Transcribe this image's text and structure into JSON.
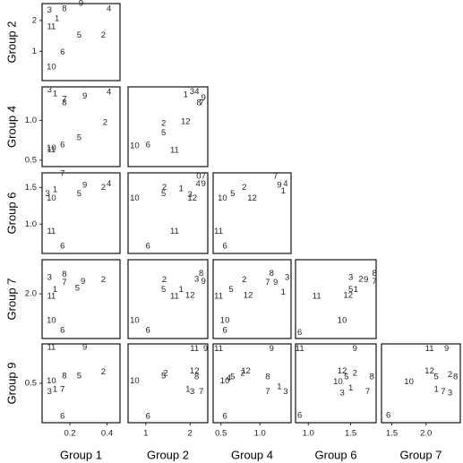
{
  "chart_data": {
    "type": "scatter",
    "layout": "lower-triangular pairs plot of group scores; each point drawn as its case-number label",
    "columns": [
      {
        "key": "g1",
        "label": "Group 1",
        "xlim": [
          0.05,
          0.47
        ],
        "ticks": [
          "0.2",
          "0.4"
        ],
        "tick_values": [
          0.2,
          0.4
        ]
      },
      {
        "key": "g2",
        "label": "Group 2",
        "xlim": [
          0.6,
          2.4
        ],
        "ticks": [
          "1",
          "2"
        ],
        "tick_values": [
          1,
          2
        ]
      },
      {
        "key": "g4",
        "label": "Group 4",
        "xlim": [
          0.4,
          1.4
        ],
        "ticks": [
          "0.5",
          "1.0"
        ],
        "tick_values": [
          0.5,
          1.0
        ]
      },
      {
        "key": "g6",
        "label": "Group 6",
        "xlim": [
          0.85,
          1.8
        ],
        "ticks": [
          "1.0",
          "1.5"
        ],
        "tick_values": [
          1.0,
          1.5
        ]
      },
      {
        "key": "g7",
        "label": "Group 7",
        "xlim": [
          1.35,
          2.5
        ],
        "ticks": [
          "1.5",
          "2.0"
        ],
        "tick_values": [
          1.5,
          2.0
        ]
      }
    ],
    "rows": [
      {
        "key": "g2",
        "label": "Group 2",
        "ylim": [
          0.05,
          2.55
        ],
        "ticks": [
          "1",
          "2"
        ],
        "tick_values": [
          1,
          2
        ]
      },
      {
        "key": "g4",
        "label": "Group 4",
        "ylim": [
          0.42,
          1.42
        ],
        "ticks": [
          "0.5",
          "1.0"
        ],
        "tick_values": [
          0.5,
          1.0
        ]
      },
      {
        "key": "g6",
        "label": "Group 6",
        "ylim": [
          0.6,
          1.7
        ],
        "ticks": [
          "1.0",
          "1.5"
        ],
        "tick_values": [
          1.0,
          1.5
        ]
      },
      {
        "key": "g7",
        "label": "Group 7",
        "ylim": [
          1.45,
          2.42
        ],
        "ticks": [
          "2.0"
        ],
        "tick_values": [
          2.0
        ]
      },
      {
        "key": "g9",
        "label": "Group 9",
        "ylim": [
          0.18,
          0.82
        ],
        "ticks": [
          "0.5"
        ],
        "tick_values": [
          0.5
        ]
      }
    ],
    "panels": [
      {
        "row": 0,
        "col": 0,
        "points": [
          {
            "label": "3",
            "x": 0.09,
            "y": 2.33
          },
          {
            "label": "8",
            "x": 0.17,
            "y": 2.38
          },
          {
            "label": "9",
            "x": 0.26,
            "y": 2.55
          },
          {
            "label": "4",
            "x": 0.41,
            "y": 2.38
          },
          {
            "label": "1",
            "x": 0.13,
            "y": 2.05
          },
          {
            "label": "11",
            "x": 0.1,
            "y": 1.8
          },
          {
            "label": "5",
            "x": 0.25,
            "y": 1.52
          },
          {
            "label": "2",
            "x": 0.38,
            "y": 1.52
          },
          {
            "label": "6",
            "x": 0.16,
            "y": 0.96
          },
          {
            "label": "10",
            "x": 0.1,
            "y": 0.48
          }
        ]
      },
      {
        "row": 1,
        "col": 0,
        "points": [
          {
            "label": "3",
            "x": 0.09,
            "y": 1.38
          },
          {
            "label": "1",
            "x": 0.12,
            "y": 1.33
          },
          {
            "label": "9",
            "x": 0.28,
            "y": 1.3
          },
          {
            "label": "4",
            "x": 0.41,
            "y": 1.35
          },
          {
            "label": "7",
            "x": 0.17,
            "y": 1.26
          },
          {
            "label": "8",
            "x": 0.17,
            "y": 1.22
          },
          {
            "label": "2",
            "x": 0.39,
            "y": 0.97
          },
          {
            "label": "5",
            "x": 0.25,
            "y": 0.78
          },
          {
            "label": "6",
            "x": 0.16,
            "y": 0.69
          },
          {
            "label": "10",
            "x": 0.1,
            "y": 0.65
          },
          {
            "label": "11",
            "x": 0.1,
            "y": 0.63
          }
        ]
      },
      {
        "row": 1,
        "col": 1,
        "points": [
          {
            "label": "1",
            "x": 1.9,
            "y": 1.32
          },
          {
            "label": "34",
            "x": 2.1,
            "y": 1.36
          },
          {
            "label": "9",
            "x": 2.3,
            "y": 1.28
          },
          {
            "label": "8",
            "x": 2.2,
            "y": 1.22
          },
          {
            "label": "7",
            "x": 2.26,
            "y": 1.22
          },
          {
            "label": "12",
            "x": 1.9,
            "y": 0.98
          },
          {
            "label": "2",
            "x": 1.4,
            "y": 0.96
          },
          {
            "label": "5",
            "x": 1.4,
            "y": 0.84
          },
          {
            "label": "10",
            "x": 0.75,
            "y": 0.68
          },
          {
            "label": "6",
            "x": 1.05,
            "y": 0.69
          },
          {
            "label": "11",
            "x": 1.65,
            "y": 0.62
          }
        ]
      },
      {
        "row": 2,
        "col": 0,
        "points": [
          {
            "label": "7",
            "x": 0.16,
            "y": 1.69
          },
          {
            "label": "9",
            "x": 0.28,
            "y": 1.53
          },
          {
            "label": "4",
            "x": 0.41,
            "y": 1.55
          },
          {
            "label": "2",
            "x": 0.38,
            "y": 1.5
          },
          {
            "label": "1",
            "x": 0.12,
            "y": 1.47
          },
          {
            "label": "3",
            "x": 0.08,
            "y": 1.41
          },
          {
            "label": "5",
            "x": 0.25,
            "y": 1.41
          },
          {
            "label": "10",
            "x": 0.1,
            "y": 1.35
          },
          {
            "label": "11",
            "x": 0.1,
            "y": 0.9
          },
          {
            "label": "6",
            "x": 0.16,
            "y": 0.7
          }
        ]
      },
      {
        "row": 2,
        "col": 1,
        "points": [
          {
            "label": "07",
            "x": 2.25,
            "y": 1.65
          },
          {
            "label": "4",
            "x": 2.18,
            "y": 1.55
          },
          {
            "label": "9",
            "x": 2.3,
            "y": 1.55
          },
          {
            "label": "2",
            "x": 1.42,
            "y": 1.5
          },
          {
            "label": "1",
            "x": 1.8,
            "y": 1.48
          },
          {
            "label": "5",
            "x": 1.4,
            "y": 1.41
          },
          {
            "label": "3",
            "x": 2.0,
            "y": 1.4
          },
          {
            "label": "12",
            "x": 2.05,
            "y": 1.35
          },
          {
            "label": "10",
            "x": 0.75,
            "y": 1.35
          },
          {
            "label": "11",
            "x": 1.65,
            "y": 0.9
          },
          {
            "label": "6",
            "x": 1.05,
            "y": 0.7
          }
        ]
      },
      {
        "row": 2,
        "col": 2,
        "points": [
          {
            "label": "7",
            "x": 1.2,
            "y": 1.65
          },
          {
            "label": "4",
            "x": 1.33,
            "y": 1.55
          },
          {
            "label": "9",
            "x": 1.25,
            "y": 1.53
          },
          {
            "label": "2",
            "x": 0.8,
            "y": 1.5
          },
          {
            "label": "1",
            "x": 1.3,
            "y": 1.45
          },
          {
            "label": "5",
            "x": 0.65,
            "y": 1.41
          },
          {
            "label": "12",
            "x": 0.9,
            "y": 1.35
          },
          {
            "label": "10",
            "x": 0.52,
            "y": 1.35
          },
          {
            "label": "11",
            "x": 0.47,
            "y": 0.9
          },
          {
            "label": "6",
            "x": 0.55,
            "y": 0.7
          }
        ]
      },
      {
        "row": 3,
        "col": 0,
        "points": [
          {
            "label": "3",
            "x": 0.09,
            "y": 2.2
          },
          {
            "label": "8",
            "x": 0.17,
            "y": 2.24
          },
          {
            "label": "7",
            "x": 0.17,
            "y": 2.14
          },
          {
            "label": "9",
            "x": 0.27,
            "y": 2.15
          },
          {
            "label": "2",
            "x": 0.38,
            "y": 2.17
          },
          {
            "label": "5",
            "x": 0.24,
            "y": 2.07
          },
          {
            "label": "1",
            "x": 0.12,
            "y": 2.05
          },
          {
            "label": "11",
            "x": 0.1,
            "y": 1.97
          },
          {
            "label": "10",
            "x": 0.1,
            "y": 1.67
          },
          {
            "label": "6",
            "x": 0.16,
            "y": 1.55
          }
        ]
      },
      {
        "row": 3,
        "col": 1,
        "points": [
          {
            "label": "8",
            "x": 2.25,
            "y": 2.25
          },
          {
            "label": "2",
            "x": 1.42,
            "y": 2.17
          },
          {
            "label": "3",
            "x": 2.15,
            "y": 2.18
          },
          {
            "label": "9",
            "x": 2.3,
            "y": 2.15
          },
          {
            "label": "5",
            "x": 1.4,
            "y": 2.05
          },
          {
            "label": "1",
            "x": 1.8,
            "y": 2.05
          },
          {
            "label": "12",
            "x": 2.0,
            "y": 1.98
          },
          {
            "label": "11",
            "x": 1.65,
            "y": 1.97
          },
          {
            "label": "10",
            "x": 0.75,
            "y": 1.67
          },
          {
            "label": "6",
            "x": 1.05,
            "y": 1.55
          }
        ]
      },
      {
        "row": 3,
        "col": 2,
        "points": [
          {
            "label": "8",
            "x": 1.15,
            "y": 2.25
          },
          {
            "label": "3",
            "x": 1.35,
            "y": 2.2
          },
          {
            "label": "2",
            "x": 0.8,
            "y": 2.17
          },
          {
            "label": "7",
            "x": 1.1,
            "y": 2.14
          },
          {
            "label": "9",
            "x": 1.2,
            "y": 2.14
          },
          {
            "label": "5",
            "x": 0.63,
            "y": 2.05
          },
          {
            "label": "1",
            "x": 1.3,
            "y": 2.02
          },
          {
            "label": "12",
            "x": 0.85,
            "y": 1.98
          },
          {
            "label": "11",
            "x": 0.47,
            "y": 1.97
          },
          {
            "label": "10",
            "x": 0.55,
            "y": 1.67
          },
          {
            "label": "6",
            "x": 0.55,
            "y": 1.55
          }
        ]
      },
      {
        "row": 3,
        "col": 3,
        "points": [
          {
            "label": "8",
            "x": 1.78,
            "y": 2.25
          },
          {
            "label": "3",
            "x": 1.5,
            "y": 2.2
          },
          {
            "label": "2",
            "x": 1.62,
            "y": 2.18
          },
          {
            "label": "9",
            "x": 1.68,
            "y": 2.17
          },
          {
            "label": "7",
            "x": 1.78,
            "y": 2.15
          },
          {
            "label": "5",
            "x": 1.5,
            "y": 2.05
          },
          {
            "label": "1",
            "x": 1.56,
            "y": 2.05
          },
          {
            "label": "12",
            "x": 1.47,
            "y": 1.98
          },
          {
            "label": "11",
            "x": 1.1,
            "y": 1.97
          },
          {
            "label": "10",
            "x": 1.4,
            "y": 1.67
          },
          {
            "label": "6",
            "x": 0.9,
            "y": 1.52
          }
        ]
      },
      {
        "row": 4,
        "col": 0,
        "points": [
          {
            "label": "11",
            "x": 0.1,
            "y": 0.79
          },
          {
            "label": "9",
            "x": 0.28,
            "y": 0.79
          },
          {
            "label": "8",
            "x": 0.17,
            "y": 0.56
          },
          {
            "label": "5",
            "x": 0.25,
            "y": 0.56
          },
          {
            "label": "2",
            "x": 0.38,
            "y": 0.59
          },
          {
            "label": "10",
            "x": 0.1,
            "y": 0.52
          },
          {
            "label": "1",
            "x": 0.12,
            "y": 0.45
          },
          {
            "label": "7",
            "x": 0.16,
            "y": 0.45
          },
          {
            "label": "3",
            "x": 0.09,
            "y": 0.43
          },
          {
            "label": "6",
            "x": 0.16,
            "y": 0.23
          }
        ]
      },
      {
        "row": 4,
        "col": 1,
        "points": [
          {
            "label": "11",
            "x": 2.1,
            "y": 0.78
          },
          {
            "label": "9",
            "x": 2.35,
            "y": 0.78
          },
          {
            "label": "12",
            "x": 2.1,
            "y": 0.6
          },
          {
            "label": "2",
            "x": 1.45,
            "y": 0.58
          },
          {
            "label": "5",
            "x": 1.4,
            "y": 0.56
          },
          {
            "label": "8",
            "x": 2.15,
            "y": 0.55
          },
          {
            "label": "10",
            "x": 0.75,
            "y": 0.52
          },
          {
            "label": "1",
            "x": 1.95,
            "y": 0.45
          },
          {
            "label": "3",
            "x": 2.05,
            "y": 0.43
          },
          {
            "label": "7",
            "x": 2.25,
            "y": 0.43
          },
          {
            "label": "6",
            "x": 1.05,
            "y": 0.23
          }
        ]
      },
      {
        "row": 4,
        "col": 2,
        "points": [
          {
            "label": "11",
            "x": 0.47,
            "y": 0.78
          },
          {
            "label": "9",
            "x": 1.15,
            "y": 0.78
          },
          {
            "label": "12",
            "x": 0.82,
            "y": 0.6
          },
          {
            "label": "2",
            "x": 0.78,
            "y": 0.58
          },
          {
            "label": "5",
            "x": 0.65,
            "y": 0.55
          },
          {
            "label": "4",
            "x": 0.6,
            "y": 0.54
          },
          {
            "label": "8",
            "x": 1.1,
            "y": 0.55
          },
          {
            "label": "10",
            "x": 0.55,
            "y": 0.52
          },
          {
            "label": "1",
            "x": 1.25,
            "y": 0.47
          },
          {
            "label": "7",
            "x": 1.1,
            "y": 0.43
          },
          {
            "label": "3",
            "x": 1.33,
            "y": 0.43
          },
          {
            "label": "6",
            "x": 0.55,
            "y": 0.23
          }
        ]
      },
      {
        "row": 4,
        "col": 3,
        "points": [
          {
            "label": "11",
            "x": 0.9,
            "y": 0.78
          },
          {
            "label": "9",
            "x": 1.55,
            "y": 0.78
          },
          {
            "label": "12",
            "x": 1.4,
            "y": 0.6
          },
          {
            "label": "2",
            "x": 1.55,
            "y": 0.58
          },
          {
            "label": "5",
            "x": 1.45,
            "y": 0.55
          },
          {
            "label": "8",
            "x": 1.75,
            "y": 0.55
          },
          {
            "label": "10",
            "x": 1.35,
            "y": 0.51
          },
          {
            "label": "1",
            "x": 1.5,
            "y": 0.46
          },
          {
            "label": "3",
            "x": 1.4,
            "y": 0.42
          },
          {
            "label": "7",
            "x": 1.7,
            "y": 0.43
          },
          {
            "label": "6",
            "x": 0.9,
            "y": 0.24
          }
        ]
      },
      {
        "row": 4,
        "col": 4,
        "points": [
          {
            "label": "11",
            "x": 2.05,
            "y": 0.78
          },
          {
            "label": "9",
            "x": 2.3,
            "y": 0.78
          },
          {
            "label": "12",
            "x": 2.05,
            "y": 0.6
          },
          {
            "label": "2",
            "x": 2.35,
            "y": 0.57
          },
          {
            "label": "5",
            "x": 2.15,
            "y": 0.55
          },
          {
            "label": "8",
            "x": 2.43,
            "y": 0.55
          },
          {
            "label": "10",
            "x": 1.75,
            "y": 0.51
          },
          {
            "label": "1",
            "x": 2.15,
            "y": 0.45
          },
          {
            "label": "7",
            "x": 2.25,
            "y": 0.43
          },
          {
            "label": "3",
            "x": 2.35,
            "y": 0.42
          },
          {
            "label": "6",
            "x": 1.45,
            "y": 0.24
          }
        ]
      }
    ]
  }
}
